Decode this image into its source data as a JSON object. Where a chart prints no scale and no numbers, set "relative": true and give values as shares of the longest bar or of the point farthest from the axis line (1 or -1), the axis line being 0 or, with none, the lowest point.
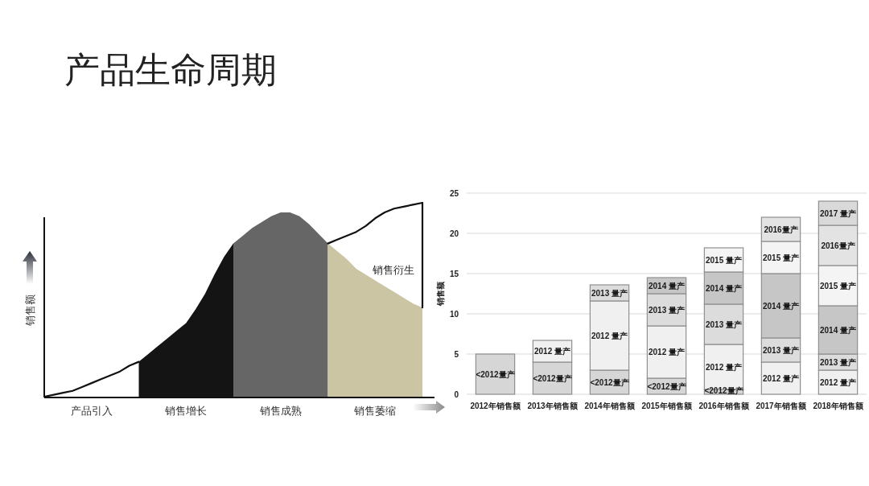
{
  "chart_data": [
    {
      "type": "area",
      "title": "产品生命周期",
      "ylabel": "销售额",
      "relative": true,
      "categories": [
        null,
        null,
        null,
        null,
        null,
        "产品引入",
        null,
        null,
        null,
        null,
        null,
        null,
        null,
        null,
        null,
        "销售增长",
        null,
        null,
        null,
        null,
        null,
        null,
        null,
        null,
        null,
        "销售成熟",
        null,
        null,
        null,
        null,
        null,
        null,
        null,
        null,
        null,
        "销售萎缩",
        null,
        null,
        null,
        null,
        null
      ],
      "series": [
        {
          "type": "line",
          "color": "#111111",
          "values": [
            0,
            0.01,
            0.02,
            0.03,
            0.05,
            0.07,
            0.09,
            0.11,
            0.13,
            0.16,
            0.18,
            null,
            null,
            null,
            null,
            null,
            null,
            null,
            null,
            null,
            null,
            null,
            null,
            null,
            null,
            null,
            null,
            null,
            null,
            null,
            null,
            null,
            null,
            null,
            null,
            null,
            null,
            null,
            null,
            null,
            null
          ]
        },
        {
          "color": "#141414",
          "values": [
            null,
            null,
            null,
            null,
            null,
            null,
            null,
            null,
            null,
            null,
            0.18,
            0.22,
            0.26,
            0.3,
            0.34,
            0.38,
            0.45,
            0.53,
            0.63,
            0.72,
            0.79,
            null,
            null,
            null,
            null,
            null,
            null,
            null,
            null,
            null,
            null,
            null,
            null,
            null,
            null,
            null,
            null,
            null,
            null,
            null,
            null
          ]
        },
        {
          "color": "#666666",
          "values": [
            null,
            null,
            null,
            null,
            null,
            null,
            null,
            null,
            null,
            null,
            null,
            null,
            null,
            null,
            null,
            null,
            null,
            null,
            null,
            null,
            0.79,
            0.83,
            0.87,
            0.9,
            0.93,
            0.95,
            0.95,
            0.93,
            0.89,
            0.84,
            0.79,
            null,
            null,
            null,
            null,
            null,
            null,
            null,
            null,
            null,
            null
          ]
        },
        {
          "color": "#cbc5a4",
          "values": [
            null,
            null,
            null,
            null,
            null,
            null,
            null,
            null,
            null,
            null,
            null,
            null,
            null,
            null,
            null,
            null,
            null,
            null,
            null,
            null,
            null,
            null,
            null,
            null,
            null,
            null,
            null,
            null,
            null,
            null,
            0.79,
            0.75,
            0.71,
            0.66,
            0.63,
            0.6,
            0.57,
            0.54,
            0.51,
            0.48,
            0.46
          ]
        },
        {
          "type": "line",
          "name": "销售衍生",
          "color": "#111111",
          "values": [
            null,
            null,
            null,
            null,
            null,
            null,
            null,
            null,
            null,
            null,
            null,
            null,
            null,
            null,
            null,
            null,
            null,
            null,
            null,
            null,
            null,
            null,
            null,
            null,
            null,
            null,
            null,
            null,
            null,
            null,
            0.79,
            0.81,
            0.83,
            0.85,
            0.88,
            0.92,
            0.95,
            0.97,
            0.98,
            0.99,
            1
          ]
        }
      ]
    },
    {
      "type": "bar",
      "stacked": true,
      "ylabel": "销售额",
      "grid": "y",
      "ylim": [
        0,
        25
      ],
      "yticks": [
        0,
        5,
        10,
        15,
        20,
        25
      ],
      "categories": [
        "2012年销售额",
        "2013年销售额",
        "2014年销售额",
        "2015年销售额",
        "2016年销售额",
        "2017年销售额",
        "2018年销售额"
      ],
      "series": [
        {
          "name": "<2012量产",
          "color": "#d6d6d6",
          "values": [
            5,
            4,
            3,
            2,
            0.6,
            null,
            null
          ]
        },
        {
          "name": "2012 量产",
          "color": "#f0f0f0",
          "values": [
            null,
            2.7,
            8.6,
            6.5,
            5.6,
            4,
            3
          ]
        },
        {
          "name": "2013 量产",
          "color": "#dcdcdc",
          "values": [
            null,
            null,
            2,
            4,
            5,
            3,
            2
          ]
        },
        {
          "name": "2014 量产",
          "color": "#c6c6c6",
          "values": [
            null,
            null,
            null,
            2,
            4,
            8,
            6
          ]
        },
        {
          "name": "2015 量产",
          "color": "#f4f4f4",
          "values": [
            null,
            null,
            null,
            null,
            3,
            4,
            5
          ]
        },
        {
          "name": "2016量产",
          "color": "#e3e3e3",
          "values": [
            null,
            null,
            null,
            null,
            null,
            3,
            5
          ]
        },
        {
          "name": "2017 量产",
          "color": "#d9d9d9",
          "values": [
            null,
            null,
            null,
            null,
            null,
            null,
            3
          ]
        }
      ]
    }
  ]
}
